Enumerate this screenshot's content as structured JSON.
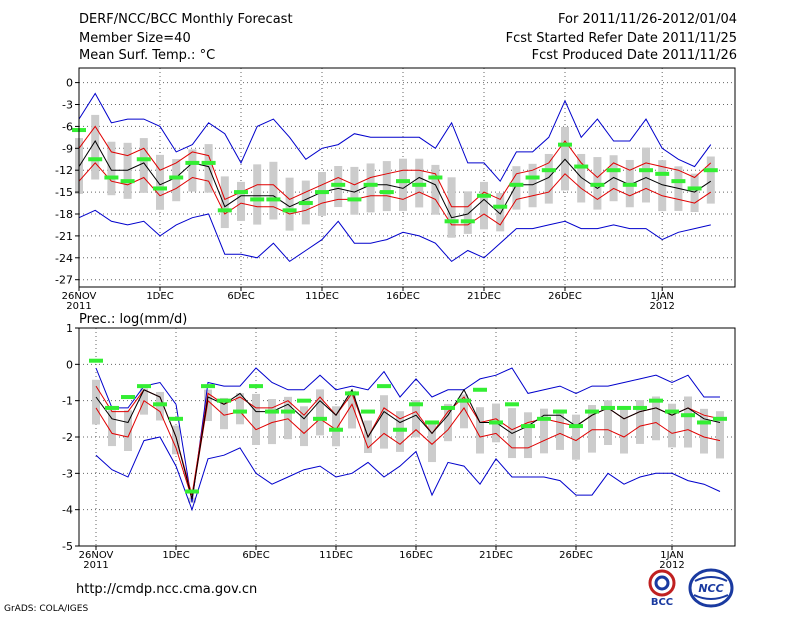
{
  "header": {
    "title": "DERF/NCC/BCC Monthly Forecast",
    "member_size": "Member Size=40",
    "variable": "Mean Surf. Temp.: °C",
    "period": "For 2011/11/26-2012/01/04",
    "started": "Fcst Started Refer Date 2011/11/25",
    "produced": "Fcst Produced Date 2011/11/26"
  },
  "footer": {
    "url": "http://cmdp.ncc.cma.gov.cn",
    "grads": "GrADS: COLA/IGES",
    "logo1_text": "BCC",
    "logo2_text": "NCC"
  },
  "colors": {
    "box": "#cccccc",
    "median": "#000000",
    "quartile": "#e00000",
    "extreme": "#0000cc",
    "mean": "#33ee33",
    "grid": "#666666"
  },
  "x_tick_labels": [
    {
      "day": 0,
      "label": "26NOV",
      "sub": "2011"
    },
    {
      "day": 5,
      "label": "1DEC"
    },
    {
      "day": 10,
      "label": "6DEC"
    },
    {
      "day": 15,
      "label": "11DEC"
    },
    {
      "day": 20,
      "label": "16DEC"
    },
    {
      "day": 25,
      "label": "21DEC"
    },
    {
      "day": 30,
      "label": "26DEC"
    },
    {
      "day": 36,
      "label": "1JAN",
      "sub": "2012"
    }
  ],
  "chart_data": [
    {
      "type": "line",
      "title": "Mean Surf. Temp.: °C",
      "ylim": [
        -28,
        2
      ],
      "yticks": [
        0,
        -3,
        -6,
        -9,
        -12,
        -15,
        -18,
        -21,
        -24,
        -27
      ],
      "x": [
        0,
        1,
        2,
        3,
        4,
        5,
        6,
        7,
        8,
        9,
        10,
        11,
        12,
        13,
        14,
        15,
        16,
        17,
        18,
        19,
        20,
        21,
        22,
        23,
        24,
        25,
        26,
        27,
        28,
        29,
        30,
        31,
        32,
        33,
        34,
        35,
        36,
        37,
        38,
        39
      ],
      "series": [
        {
          "name": "max",
          "values": [
            -5,
            -1.5,
            -5.5,
            -5,
            -5,
            -6,
            -9.5,
            -8.5,
            -5.5,
            -7,
            -11,
            -6,
            -5,
            -7.5,
            -10.5,
            -9,
            -8.5,
            -7,
            -7.5,
            -7.5,
            -7.5,
            -7.5,
            -9,
            -5.5,
            -11,
            -11,
            -13.5,
            -9.5,
            -9.5,
            -7.5,
            -2.5,
            -7.5,
            -5,
            -8,
            -8,
            -5,
            -9,
            -10.5,
            -11.5,
            -8.5
          ]
        },
        {
          "name": "upper_quartile",
          "values": [
            -9,
            -6,
            -9.5,
            -10,
            -9,
            -12,
            -11,
            -9.5,
            -10,
            -16,
            -15,
            -14,
            -14,
            -16,
            -15,
            -14,
            -13,
            -14,
            -13,
            -12.5,
            -12,
            -12,
            -12.5,
            -17,
            -17,
            -15,
            -16,
            -12.5,
            -12,
            -11,
            -8,
            -11,
            -13,
            -11,
            -12,
            -11,
            -11.5,
            -12,
            -13,
            -11
          ]
        },
        {
          "name": "median",
          "values": [
            -11.5,
            -8,
            -12,
            -12,
            -11,
            -14,
            -13,
            -11,
            -11.5,
            -17,
            -15.5,
            -15.5,
            -15.5,
            -17,
            -16,
            -15,
            -14.5,
            -15,
            -14,
            -14,
            -14.5,
            -13,
            -14,
            -18.5,
            -18,
            -16,
            -18,
            -14,
            -14,
            -13,
            -10.5,
            -13,
            -14.5,
            -13,
            -14,
            -13,
            -14,
            -14.5,
            -15,
            -13.5
          ]
        },
        {
          "name": "lower_quartile",
          "values": [
            -13.5,
            -11,
            -13.5,
            -14,
            -13,
            -15.5,
            -14.5,
            -13,
            -13.5,
            -18,
            -16.5,
            -17,
            -17,
            -18,
            -17.5,
            -16.5,
            -16,
            -16,
            -15.5,
            -15.5,
            -16,
            -15,
            -16,
            -19.5,
            -19.5,
            -18,
            -19.5,
            -16,
            -15.5,
            -15,
            -12.5,
            -14.5,
            -16,
            -14.5,
            -15.5,
            -14.5,
            -15.5,
            -16,
            -16.5,
            -15
          ]
        },
        {
          "name": "min",
          "values": [
            -18.5,
            -17.5,
            -19,
            -19.5,
            -19,
            -21,
            -19.5,
            -18.5,
            -18,
            -23.5,
            -23.5,
            -24,
            -22,
            -24.5,
            -23,
            -21.5,
            -19,
            -22,
            -22,
            -21.5,
            -20.5,
            -21,
            -22,
            -24.5,
            -23,
            -24,
            -22,
            -20,
            -20,
            -19.5,
            -19,
            -20,
            -20,
            -19.5,
            -20,
            -20,
            -21.5,
            -20.5,
            -20,
            -19.5
          ]
        },
        {
          "name": "mean",
          "values": [
            -6.5,
            -10.5,
            -13,
            -13.5,
            -10.5,
            -14.5,
            -13,
            -11,
            -11,
            -17.5,
            -15,
            -16,
            -16,
            -17.5,
            -16.5,
            -15,
            -14,
            -16,
            -14,
            -15,
            -13.5,
            -14,
            -13,
            -19,
            -19,
            -15.5,
            -17,
            -14,
            -13,
            -12,
            -8.5,
            -11.5,
            -14,
            -12,
            -14,
            -12,
            -12.5,
            -13.5,
            -14.5,
            -12
          ]
        }
      ]
    },
    {
      "type": "line",
      "title": "Prec.: log(mm/d)",
      "ylim": [
        -5,
        1
      ],
      "yticks": [
        1,
        0,
        -1,
        -2,
        -3,
        -4,
        -5
      ],
      "x": [
        0,
        1,
        2,
        3,
        4,
        5,
        6,
        7,
        8,
        9,
        10,
        11,
        12,
        13,
        14,
        15,
        16,
        17,
        18,
        19,
        20,
        21,
        22,
        23,
        24,
        25,
        26,
        27,
        28,
        29,
        30,
        31,
        32,
        33,
        34,
        35,
        36,
        37,
        38,
        39
      ],
      "series": [
        {
          "name": "max",
          "values": [
            -0.1,
            -1.2,
            -1.2,
            -0.6,
            -0.5,
            -1.1,
            -3.8,
            -0.5,
            -0.6,
            -0.6,
            -0.1,
            -0.5,
            -0.7,
            -0.7,
            -0.3,
            -0.7,
            -0.6,
            -0.7,
            -0.2,
            -0.9,
            -0.4,
            -0.9,
            -0.7,
            -0.7,
            -0.4,
            -0.3,
            -0.1,
            -0.8,
            -0.7,
            -0.6,
            -0.8,
            -0.6,
            -0.6,
            -0.5,
            -0.4,
            -0.3,
            -0.5,
            -0.3,
            -0.9,
            -0.9
          ]
        },
        {
          "name": "upper_quartile",
          "values": [
            -0.6,
            -1.3,
            -1.3,
            -0.7,
            -0.9,
            -2.0,
            -3.6,
            -0.8,
            -1.1,
            -0.9,
            -1.2,
            -1.2,
            -1.0,
            -1.4,
            -0.9,
            -1.4,
            -0.8,
            -2.0,
            -1.2,
            -1.5,
            -1.3,
            -1.9,
            -1.3,
            -0.9,
            -1.6,
            -1.5,
            -1.8,
            -1.6,
            -1.5,
            -1.6,
            -1.7,
            -1.4,
            -1.2,
            -1.5,
            -1.3,
            -1.2,
            -1.4,
            -1.2,
            -1.4,
            -1.5
          ]
        },
        {
          "name": "median",
          "values": [
            -0.9,
            -1.5,
            -1.6,
            -0.7,
            -0.9,
            -2.0,
            -3.7,
            -0.9,
            -1.1,
            -0.8,
            -1.3,
            -1.3,
            -1.1,
            -1.5,
            -1.0,
            -1.4,
            -0.7,
            -2.0,
            -1.3,
            -1.6,
            -1.4,
            -1.9,
            -1.4,
            -0.7,
            -1.6,
            -1.6,
            -1.9,
            -1.7,
            -1.4,
            -1.4,
            -1.7,
            -1.4,
            -1.2,
            -1.5,
            -1.3,
            -1.2,
            -1.4,
            -1.2,
            -1.5,
            -1.6
          ]
        },
        {
          "name": "lower_quartile",
          "values": [
            -1.2,
            -1.9,
            -2.0,
            -1.0,
            -1.3,
            -2.3,
            -3.7,
            -1.0,
            -1.4,
            -1.3,
            -1.8,
            -1.6,
            -1.5,
            -1.9,
            -1.5,
            -1.8,
            -1.1,
            -2.3,
            -1.9,
            -2.2,
            -1.8,
            -2.2,
            -1.8,
            -1.2,
            -2.0,
            -1.9,
            -2.3,
            -2.3,
            -2.1,
            -1.9,
            -2.1,
            -1.8,
            -1.8,
            -2.0,
            -1.7,
            -1.6,
            -1.9,
            -1.8,
            -2.0,
            -2.1
          ]
        },
        {
          "name": "min",
          "values": [
            -2.5,
            -2.9,
            -3.1,
            -2.1,
            -2.0,
            -2.8,
            -4.0,
            -2.6,
            -2.5,
            -2.3,
            -3.0,
            -3.3,
            -3.1,
            -2.9,
            -2.8,
            -3.1,
            -3.0,
            -2.7,
            -3.1,
            -2.8,
            -2.4,
            -3.6,
            -2.7,
            -2.8,
            -3.3,
            -2.6,
            -3.1,
            -3.1,
            -3.1,
            -3.2,
            -3.6,
            -3.6,
            -3.0,
            -3.3,
            -3.1,
            -3.0,
            -3.0,
            -3.2,
            -3.3,
            -3.5
          ]
        },
        {
          "name": "mean",
          "values": [
            0.1,
            -1.2,
            -0.9,
            -0.6,
            -1.1,
            -1.5,
            -3.5,
            -0.6,
            -1.0,
            -1.3,
            -0.6,
            -1.3,
            -1.3,
            -1.0,
            -1.5,
            -1.8,
            -0.8,
            -1.3,
            -0.6,
            -1.8,
            -1.1,
            -1.6,
            -1.2,
            -1.0,
            -0.7,
            -1.6,
            -1.1,
            -1.7,
            -1.5,
            -1.3,
            -1.7,
            -1.3,
            -1.2,
            -1.2,
            -1.2,
            -1.0,
            -1.3,
            -1.4,
            -1.6,
            -1.5
          ]
        }
      ]
    }
  ]
}
